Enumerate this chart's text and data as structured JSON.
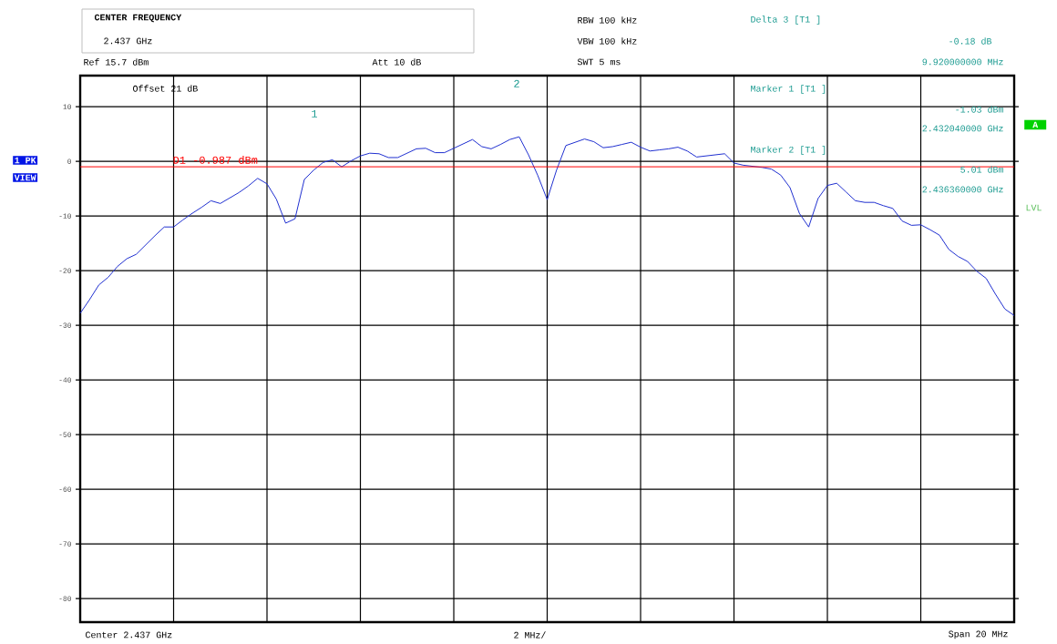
{
  "chart_data": {
    "type": "line",
    "annotations": [
      "CENTER FREQUENCY",
      "2.437 GHz",
      "Ref 15.7 dBm",
      "Att 10 dB",
      "RBW 100 kHz",
      "VBW 100 kHz",
      "SWT 5 ms",
      "Delta 3 [T1 ]",
      "-0.18 dB",
      "9.920000000 MHz",
      "Offset 21 dB",
      "Marker 1 [T1 ]",
      "-1.03 dBm",
      "2.432040000 GHz",
      "Marker 2 [T1 ]",
      "5.01 dBm",
      "2.436360000 GHz",
      "1 PK",
      "VIEW",
      "A",
      "LVL",
      "Center 2.437 GHz",
      "2 MHz/",
      "Span 20 MHz",
      "1",
      "2"
    ],
    "categories": [
      null,
      null,
      null,
      null,
      null,
      null,
      null,
      null,
      null,
      null,
      null,
      null,
      null,
      null,
      null,
      null,
      null,
      null,
      null,
      null,
      null,
      null,
      null,
      null,
      null,
      null,
      null,
      null,
      null,
      null,
      null,
      null,
      null,
      null,
      null,
      null,
      null,
      null,
      null,
      null,
      null,
      null,
      null,
      null,
      null,
      null,
      null,
      null,
      null,
      null,
      null,
      null,
      null,
      null,
      null,
      null,
      null,
      null,
      null,
      null,
      null,
      null,
      null,
      null,
      null,
      null,
      null,
      null,
      null,
      null,
      null,
      null,
      null,
      null,
      null,
      null,
      null,
      null,
      null,
      null,
      null,
      null,
      null,
      null,
      null,
      null,
      null,
      null,
      null,
      null,
      null,
      null,
      null,
      null,
      null,
      null,
      null,
      null,
      null,
      null,
      null
    ],
    "series": [
      {
        "color": "#1f2fd0",
        "values": [
          -27.8,
          -25.3,
          -22.6,
          -21.2,
          -19.2,
          -17.8,
          -17,
          -15.3,
          -13.6,
          -12,
          -12,
          -10.7,
          -9.5,
          -8.4,
          -7.2,
          -7.7,
          -6.7,
          -5.7,
          -4.5,
          -3.1,
          -4.1,
          -6.9,
          -11.3,
          -10.5,
          -3.3,
          -1.6,
          -0.2,
          0.3,
          -1,
          0.1,
          1,
          1.5,
          1.4,
          0.7,
          0.7,
          1.5,
          2.3,
          2.4,
          1.6,
          1.6,
          2.4,
          3.2,
          4,
          2.7,
          2.3,
          3.1,
          4,
          4.5,
          1.2,
          -2.6,
          -7,
          -1.6,
          2.9,
          3.5,
          4.1,
          3.6,
          2.5,
          2.7,
          3.1,
          3.5,
          2.6,
          1.9,
          2.1,
          2.3,
          2.6,
          1.9,
          0.8,
          1,
          1.2,
          1.4,
          -0.3,
          -0.7,
          -0.9,
          -1.1,
          -1.4,
          -2.5,
          -4.8,
          -9.5,
          -12,
          -6.8,
          -4.4,
          -4,
          -5.6,
          -7.2,
          -7.5,
          -7.5,
          -8.1,
          -8.6,
          -10.9,
          -11.7,
          -11.6,
          -12.5,
          -13.5,
          -16.1,
          -17.4,
          -18.3,
          -20.1,
          -21.4,
          -24.3,
          -27,
          -28.2
        ]
      }
    ],
    "ylim": [
      -84.3,
      15.7
    ],
    "yticks": [
      10,
      0,
      -10,
      -20,
      -30,
      -40,
      -50,
      -60,
      -70,
      -80
    ],
    "grid": true,
    "ref_lines": [
      {
        "axis": "y",
        "value": -0.987,
        "label": "D1 -0.987 dBm",
        "color": "#ff0000",
        "line_style": "solid"
      }
    ]
  }
}
